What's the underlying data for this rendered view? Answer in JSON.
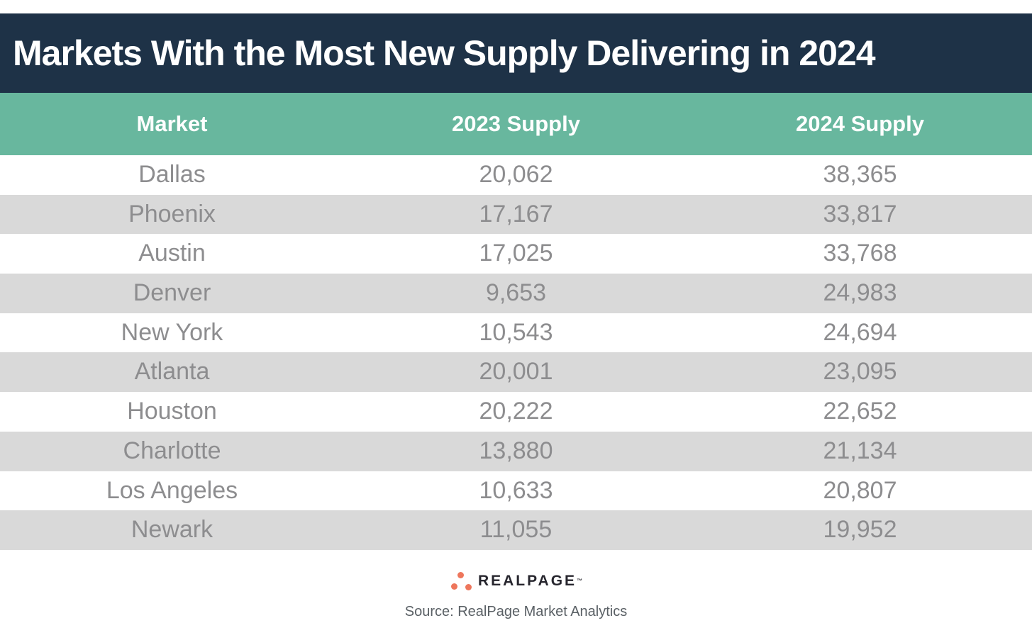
{
  "title": "Markets With the Most New Supply Delivering in 2024",
  "table": {
    "columns": [
      "Market",
      "2023 Supply",
      "2024 Supply"
    ],
    "rows": [
      [
        "Dallas",
        "20,062",
        "38,365"
      ],
      [
        "Phoenix",
        "17,167",
        "33,817"
      ],
      [
        "Austin",
        "17,025",
        "33,768"
      ],
      [
        "Denver",
        "9,653",
        "24,983"
      ],
      [
        "New York",
        "10,543",
        "24,694"
      ],
      [
        "Atlanta",
        "20,001",
        "23,095"
      ],
      [
        "Houston",
        "20,222",
        "22,652"
      ],
      [
        "Charlotte",
        "13,880",
        "21,134"
      ],
      [
        "Los Angeles",
        "10,633",
        "20,807"
      ],
      [
        "Newark",
        "11,055",
        "19,952"
      ]
    ]
  },
  "chart_data": {
    "type": "table",
    "title": "Markets With the Most New Supply Delivering in 2024",
    "columns": [
      "Market",
      "2023 Supply",
      "2024 Supply"
    ],
    "rows": [
      [
        "Dallas",
        20062,
        38365
      ],
      [
        "Phoenix",
        17167,
        33817
      ],
      [
        "Austin",
        17025,
        33768
      ],
      [
        "Denver",
        9653,
        24983
      ],
      [
        "New York",
        10543,
        24694
      ],
      [
        "Atlanta",
        20001,
        23095
      ],
      [
        "Houston",
        20222,
        22652
      ],
      [
        "Charlotte",
        13880,
        21134
      ],
      [
        "Los Angeles",
        10633,
        20807
      ],
      [
        "Newark",
        11055,
        19952
      ]
    ]
  },
  "footer": {
    "logo_text": "REALPAGE",
    "logo_trademark": "™",
    "source": "Source: RealPage Market Analytics"
  },
  "colors": {
    "title_bg": "#1e3247",
    "header_bg": "#68b79e",
    "row_alt_bg": "#d9d9d9",
    "row_text": "#8d8d8f",
    "logo_accent": "#ee765c",
    "logo_text": "#27262e",
    "source_text": "#5a6065"
  }
}
